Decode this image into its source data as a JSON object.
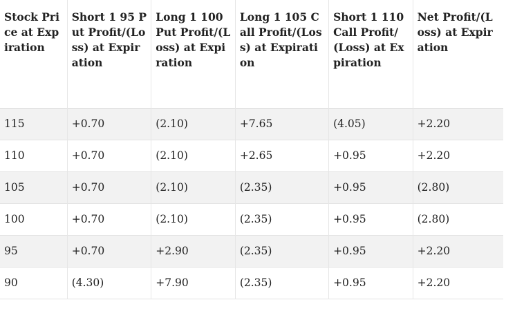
{
  "table": {
    "headers": [
      "Stock Price at Expiration",
      "Short 1 95 Put Profit/(Loss) at Expiration",
      "Long 1 100 Put Profit/(Loss) at Expiration",
      "Long 1 105 Call Profit/(Loss) at Expiration",
      "Short 1 110 Call Profit/(Loss) at Expiration",
      "Net Profit/(Loss) at Expiration"
    ],
    "rows": [
      [
        "115",
        "+0.70",
        "(2.10)",
        "+7.65",
        "(4.05)",
        "+2.20"
      ],
      [
        "110",
        "+0.70",
        "(2.10)",
        "+2.65",
        "+0.95",
        "+2.20"
      ],
      [
        "105",
        "+0.70",
        "(2.10)",
        "(2.35)",
        "+0.95",
        "(2.80)"
      ],
      [
        "100",
        "+0.70",
        "(2.10)",
        "(2.35)",
        "+0.95",
        "(2.80)"
      ],
      [
        "95",
        "+0.70",
        "+2.90",
        "(2.35)",
        "+0.95",
        "+2.20"
      ],
      [
        "90",
        "(4.30)",
        "+7.90",
        "(2.35)",
        "+0.95",
        "+2.20"
      ]
    ]
  }
}
